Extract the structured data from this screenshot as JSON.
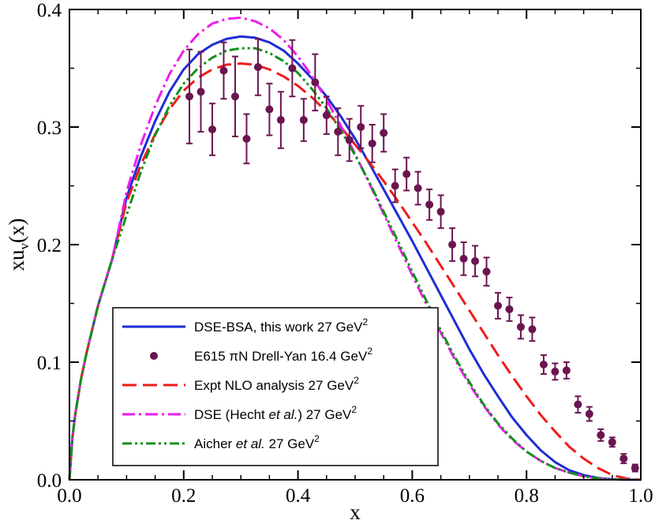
{
  "chart_data": {
    "type": "line",
    "xlabel": "x",
    "ylabel": "xu",
    "ylabel_sub": "v",
    "ylabel_suffix": "(x)",
    "xlim": [
      0.0,
      1.0
    ],
    "ylim": [
      0.0,
      0.4
    ],
    "x_ticks": [
      "0.0",
      "0.2",
      "0.4",
      "0.6",
      "0.8",
      "1.0"
    ],
    "y_ticks": [
      "0.0",
      "0.1",
      "0.2",
      "0.3",
      "0.4"
    ],
    "series": [
      {
        "name": "DSE-BSA, this work",
        "legend_parts": [
          "DSE-BSA, this work  27 GeV",
          "2"
        ],
        "style": "solid",
        "color": "#1f2dd6",
        "x": [
          0,
          0.005,
          0.01,
          0.02,
          0.03,
          0.05,
          0.075,
          0.1,
          0.125,
          0.15,
          0.175,
          0.2,
          0.225,
          0.25,
          0.275,
          0.3,
          0.325,
          0.35,
          0.375,
          0.4,
          0.425,
          0.45,
          0.475,
          0.5,
          0.525,
          0.55,
          0.575,
          0.6,
          0.625,
          0.65,
          0.675,
          0.7,
          0.725,
          0.75,
          0.775,
          0.8,
          0.825,
          0.85,
          0.875,
          0.9,
          0.925,
          0.95,
          0.975,
          1.0
        ],
        "y": [
          0,
          0.035,
          0.055,
          0.085,
          0.108,
          0.148,
          0.188,
          0.24,
          0.275,
          0.305,
          0.33,
          0.349,
          0.362,
          0.37,
          0.375,
          0.377,
          0.376,
          0.372,
          0.365,
          0.354,
          0.341,
          0.326,
          0.309,
          0.29,
          0.269,
          0.247,
          0.225,
          0.203,
          0.18,
          0.157,
          0.134,
          0.111,
          0.09,
          0.071,
          0.053,
          0.038,
          0.025,
          0.015,
          0.008,
          0.004,
          0.0015,
          0.0004,
          0.0001,
          0
        ]
      },
      {
        "name": "Expt NLO analysis",
        "legend_parts": [
          "Expt NLO analysis 27 GeV",
          "2"
        ],
        "style": "dashed",
        "color": "#ee1c1c",
        "x": [
          0,
          0.005,
          0.01,
          0.02,
          0.03,
          0.05,
          0.075,
          0.1,
          0.125,
          0.15,
          0.175,
          0.2,
          0.225,
          0.25,
          0.275,
          0.3,
          0.325,
          0.35,
          0.375,
          0.4,
          0.425,
          0.45,
          0.475,
          0.5,
          0.525,
          0.55,
          0.575,
          0.6,
          0.625,
          0.65,
          0.675,
          0.7,
          0.725,
          0.75,
          0.775,
          0.8,
          0.825,
          0.85,
          0.875,
          0.9,
          0.925,
          0.95,
          0.975,
          1.0
        ],
        "y": [
          0,
          0.035,
          0.055,
          0.085,
          0.108,
          0.148,
          0.188,
          0.236,
          0.268,
          0.294,
          0.315,
          0.331,
          0.342,
          0.349,
          0.353,
          0.354,
          0.353,
          0.349,
          0.343,
          0.335,
          0.325,
          0.313,
          0.3,
          0.285,
          0.27,
          0.254,
          0.237,
          0.219,
          0.201,
          0.182,
          0.163,
          0.144,
          0.125,
          0.106,
          0.088,
          0.071,
          0.055,
          0.041,
          0.028,
          0.018,
          0.01,
          0.004,
          0.001,
          0
        ]
      },
      {
        "name": "DSE (Hecht et al.)",
        "legend_parts": [
          "DSE (Hecht ",
          "et al.",
          ") 27 GeV",
          "2"
        ],
        "style": "dash-dot",
        "color": "#ee1cee",
        "x": [
          0,
          0.005,
          0.01,
          0.02,
          0.03,
          0.05,
          0.075,
          0.1,
          0.125,
          0.15,
          0.175,
          0.2,
          0.225,
          0.25,
          0.275,
          0.3,
          0.325,
          0.35,
          0.375,
          0.4,
          0.425,
          0.45,
          0.475,
          0.5,
          0.525,
          0.55,
          0.575,
          0.6,
          0.625,
          0.65,
          0.675,
          0.7,
          0.725,
          0.75,
          0.775,
          0.8,
          0.825,
          0.85,
          0.875,
          0.9,
          0.925,
          0.95,
          0.975,
          1.0
        ],
        "y": [
          0,
          0.035,
          0.055,
          0.085,
          0.108,
          0.148,
          0.188,
          0.245,
          0.285,
          0.318,
          0.345,
          0.365,
          0.379,
          0.388,
          0.392,
          0.393,
          0.39,
          0.384,
          0.374,
          0.36,
          0.343,
          0.323,
          0.301,
          0.277,
          0.252,
          0.226,
          0.2,
          0.174,
          0.149,
          0.125,
          0.102,
          0.081,
          0.063,
          0.047,
          0.034,
          0.024,
          0.016,
          0.01,
          0.006,
          0.003,
          0.001,
          0.0003,
          0.0001,
          0
        ]
      },
      {
        "name": "Aicher et al.",
        "legend_parts": [
          "Aicher ",
          "et al.",
          " 27 GeV",
          "2"
        ],
        "style": "dash-dot-dot",
        "color": "#11911b",
        "x": [
          0,
          0.005,
          0.01,
          0.02,
          0.03,
          0.05,
          0.075,
          0.1,
          0.125,
          0.15,
          0.175,
          0.2,
          0.225,
          0.25,
          0.275,
          0.3,
          0.325,
          0.35,
          0.375,
          0.4,
          0.425,
          0.45,
          0.475,
          0.5,
          0.525,
          0.55,
          0.575,
          0.6,
          0.625,
          0.65,
          0.675,
          0.7,
          0.725,
          0.75,
          0.775,
          0.8,
          0.825,
          0.85,
          0.875,
          0.9,
          0.925,
          0.95,
          0.975,
          1.0
        ],
        "y": [
          0,
          0.035,
          0.055,
          0.085,
          0.108,
          0.148,
          0.188,
          0.225,
          0.262,
          0.293,
          0.318,
          0.337,
          0.35,
          0.359,
          0.365,
          0.367,
          0.367,
          0.363,
          0.356,
          0.346,
          0.332,
          0.316,
          0.297,
          0.276,
          0.253,
          0.228,
          0.203,
          0.177,
          0.152,
          0.127,
          0.104,
          0.083,
          0.064,
          0.048,
          0.035,
          0.024,
          0.016,
          0.01,
          0.006,
          0.003,
          0.001,
          0.0003,
          0.0001,
          0
        ]
      }
    ],
    "points": {
      "name": "E615 πN Drell-Yan",
      "legend_parts": [
        "E615  πN Drell-Yan 16.4 GeV",
        "2"
      ],
      "color": "#6b1550",
      "x": [
        0.21,
        0.23,
        0.25,
        0.27,
        0.29,
        0.31,
        0.33,
        0.35,
        0.37,
        0.39,
        0.41,
        0.43,
        0.45,
        0.47,
        0.49,
        0.51,
        0.53,
        0.55,
        0.57,
        0.59,
        0.61,
        0.63,
        0.65,
        0.67,
        0.69,
        0.71,
        0.73,
        0.75,
        0.77,
        0.79,
        0.81,
        0.83,
        0.85,
        0.87,
        0.89,
        0.91,
        0.93,
        0.95,
        0.97,
        0.99
      ],
      "y": [
        0.326,
        0.33,
        0.298,
        0.348,
        0.326,
        0.29,
        0.351,
        0.315,
        0.306,
        0.35,
        0.306,
        0.338,
        0.31,
        0.296,
        0.289,
        0.3,
        0.286,
        0.295,
        0.25,
        0.26,
        0.248,
        0.234,
        0.228,
        0.2,
        0.188,
        0.186,
        0.177,
        0.148,
        0.145,
        0.13,
        0.128,
        0.098,
        0.092,
        0.093,
        0.064,
        0.056,
        0.038,
        0.032,
        0.018,
        0.01
      ],
      "err": [
        0.04,
        0.034,
        0.022,
        0.024,
        0.034,
        0.021,
        0.024,
        0.022,
        0.024,
        0.024,
        0.018,
        0.024,
        0.016,
        0.02,
        0.018,
        0.018,
        0.016,
        0.016,
        0.014,
        0.014,
        0.014,
        0.013,
        0.014,
        0.014,
        0.014,
        0.013,
        0.012,
        0.011,
        0.01,
        0.01,
        0.01,
        0.008,
        0.007,
        0.007,
        0.007,
        0.006,
        0.005,
        0.004,
        0.004,
        0.003
      ]
    },
    "legend_position": "bottom-left"
  }
}
